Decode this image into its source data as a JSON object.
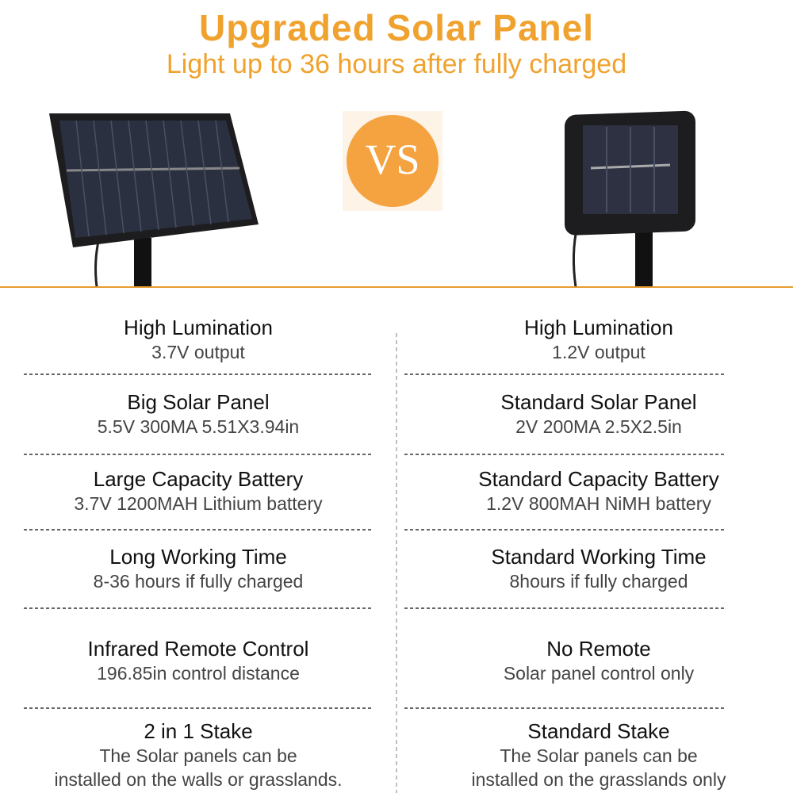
{
  "header": {
    "title": "Upgraded Solar Panel",
    "subtitle": "Light up to 36 hours after fully charged",
    "vs": "VS"
  },
  "rows": [
    {
      "left": {
        "title": "High Lumination",
        "description": [
          "3.7V output"
        ]
      },
      "right": {
        "title": "High Lumination",
        "description": [
          "1.2V output"
        ]
      }
    },
    {
      "left": {
        "title": "Big Solar Panel",
        "description": [
          "5.5V 300MA  5.51X3.94in"
        ]
      },
      "right": {
        "title": "Standard Solar Panel",
        "description": [
          "2V 200MA  2.5X2.5in"
        ]
      }
    },
    {
      "left": {
        "title": "Large Capacity Battery",
        "description": [
          "3.7V 1200MAH Lithium battery"
        ]
      },
      "right": {
        "title": "Standard Capacity Battery",
        "description": [
          "1.2V 800MAH NiMH battery"
        ]
      }
    },
    {
      "left": {
        "title": "Long Working Time",
        "description": [
          "8-36 hours if fully charged"
        ]
      },
      "right": {
        "title": "Standard Working Time",
        "description": [
          "8hours if fully charged"
        ]
      }
    },
    {
      "left": {
        "title": "Infrared Remote Control",
        "description": [
          "196.85in control distance"
        ]
      },
      "right": {
        "title": "No Remote",
        "description": [
          "Solar panel control only"
        ]
      }
    },
    {
      "left": {
        "title": "2 in 1 Stake",
        "description": [
          "The Solar panels can be",
          "installed on the walls or grasslands."
        ]
      },
      "right": {
        "title": "Standard Stake",
        "description": [
          "The Solar panels can be",
          "installed on the grasslands only"
        ]
      }
    }
  ]
}
